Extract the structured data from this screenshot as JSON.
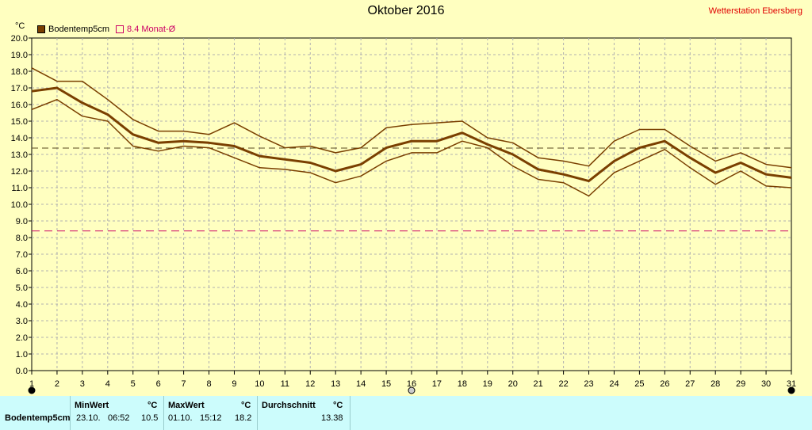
{
  "header": {
    "title": "Oktober 2016",
    "station": "Wetterstation Ebersberg",
    "unit": "°C"
  },
  "legend": [
    {
      "label": "Bodentemp5cm",
      "color": "#7a3f00",
      "filled": true
    },
    {
      "label": "8.4 Monat-Ø",
      "color": "#cc0066",
      "filled": false
    }
  ],
  "colors": {
    "series": "#7a3f00",
    "avg": "#5a4a20",
    "month_avg": "#cc0066",
    "grid": "#b0b0b0"
  },
  "chart_data": {
    "type": "line",
    "x": [
      1,
      2,
      3,
      4,
      5,
      6,
      7,
      8,
      9,
      10,
      11,
      12,
      13,
      14,
      15,
      16,
      17,
      18,
      19,
      20,
      21,
      22,
      23,
      24,
      25,
      26,
      27,
      28,
      29,
      30,
      31
    ],
    "series": [
      {
        "name": "Bodentemp5cm",
        "values": [
          16.8,
          17.0,
          16.1,
          15.4,
          14.2,
          13.7,
          13.8,
          13.7,
          13.5,
          12.9,
          12.7,
          12.5,
          12.0,
          12.4,
          13.4,
          13.8,
          13.8,
          14.3,
          13.6,
          13.0,
          12.1,
          11.8,
          11.4,
          12.6,
          13.4,
          13.8,
          12.8,
          11.9,
          12.5,
          11.8,
          11.6
        ]
      },
      {
        "name": "max",
        "values": [
          18.2,
          17.4,
          17.4,
          16.3,
          15.1,
          14.4,
          14.4,
          14.2,
          14.9,
          14.1,
          13.4,
          13.5,
          13.1,
          13.4,
          14.6,
          14.8,
          14.9,
          15.0,
          14.0,
          13.7,
          12.8,
          12.6,
          12.3,
          13.8,
          14.5,
          14.5,
          13.5,
          12.6,
          13.1,
          12.4,
          12.2
        ]
      },
      {
        "name": "min",
        "values": [
          15.7,
          16.3,
          15.3,
          15.0,
          13.5,
          13.2,
          13.5,
          13.4,
          12.8,
          12.2,
          12.1,
          11.9,
          11.3,
          11.7,
          12.6,
          13.1,
          13.1,
          13.8,
          13.4,
          12.3,
          11.5,
          11.3,
          10.5,
          11.9,
          12.6,
          13.3,
          12.2,
          11.2,
          12.0,
          11.1,
          11.0
        ]
      }
    ],
    "reference_lines": [
      {
        "value": 13.38
      },
      {
        "value": 8.4
      }
    ],
    "ylim": [
      0,
      20
    ],
    "y_ticks": [
      "0.0",
      "1.0",
      "2.0",
      "3.0",
      "4.0",
      "5.0",
      "6.0",
      "7.0",
      "8.0",
      "9.0",
      "10.0",
      "11.0",
      "12.0",
      "13.0",
      "14.0",
      "15.0",
      "16.0",
      "17.0",
      "18.0",
      "19.0",
      "20.0"
    ],
    "x_ticks": [
      "1",
      "2",
      "3",
      "4",
      "5",
      "6",
      "7",
      "8",
      "9",
      "10",
      "11",
      "12",
      "13",
      "14",
      "15",
      "16",
      "17",
      "18",
      "19",
      "20",
      "21",
      "22",
      "23",
      "24",
      "25",
      "26",
      "27",
      "28",
      "29",
      "30",
      "31"
    ],
    "grid": true
  },
  "stats": {
    "row_label": "Bodentemp5cm",
    "min_header": "MinWert",
    "max_header": "MaxWert",
    "avg_header": "Durchschnitt",
    "unit_header": "°C",
    "min_date": "23.10.",
    "min_time": "06:52",
    "min_value": "10.5",
    "max_date": "01.10.",
    "max_time": "15:12",
    "max_value": "18.2",
    "avg_value": "13.38"
  }
}
